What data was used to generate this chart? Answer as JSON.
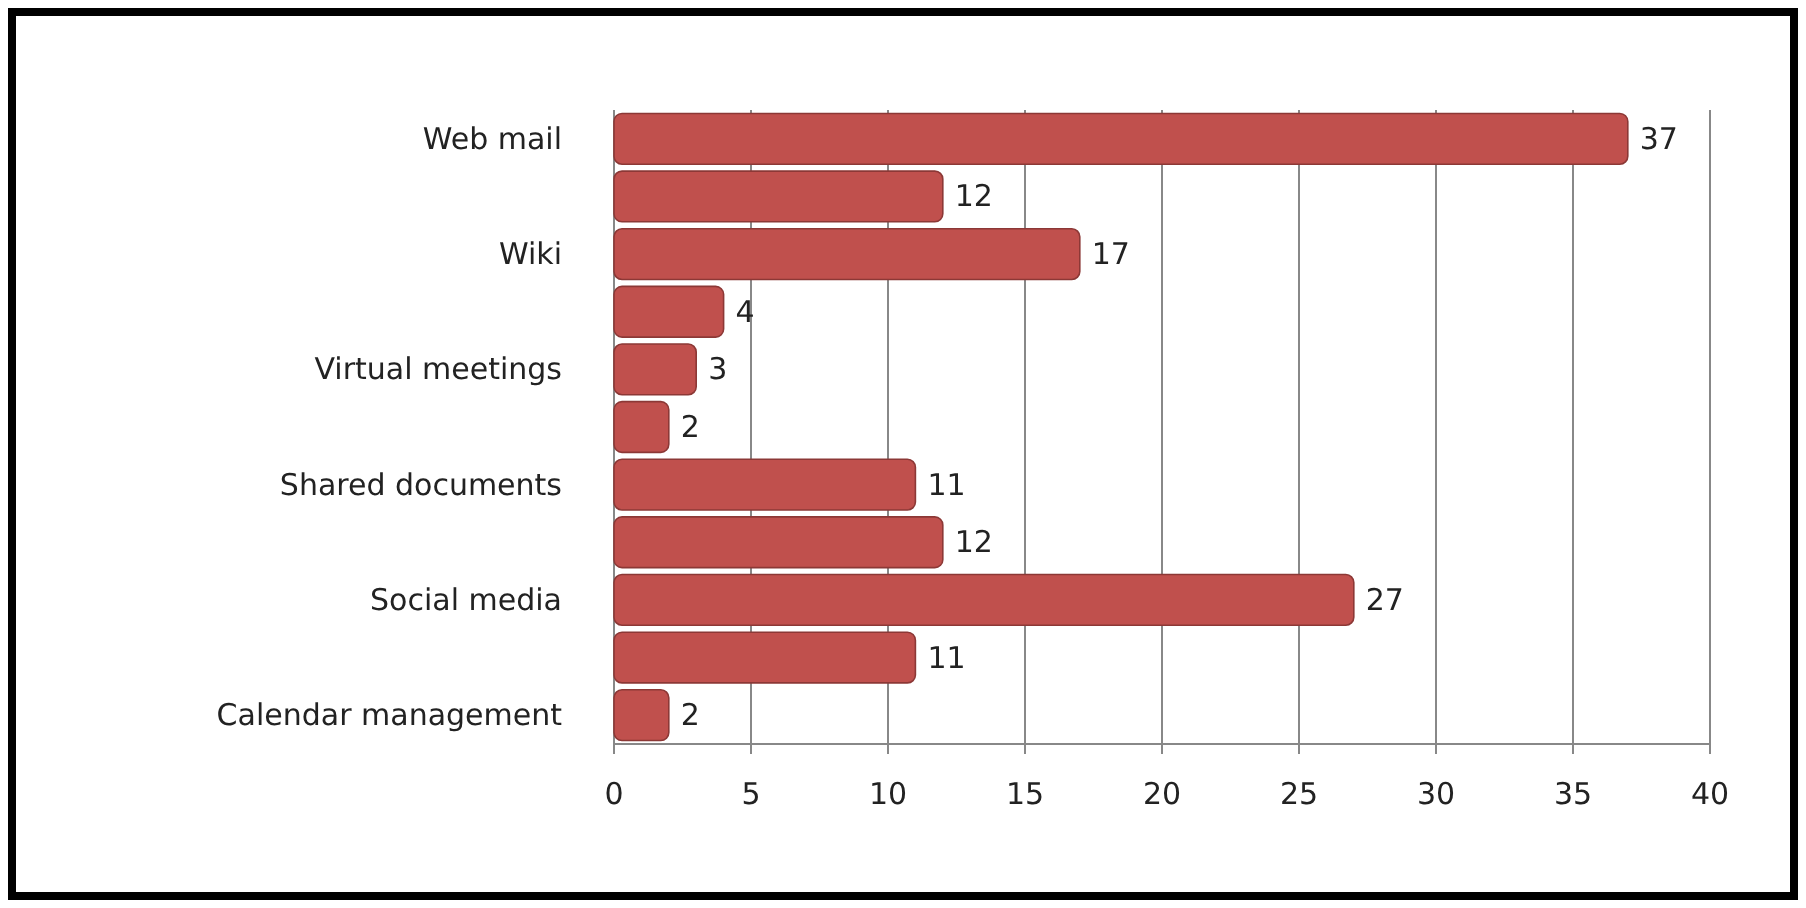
{
  "chart_data": {
    "type": "bar",
    "orientation": "horizontal",
    "categories": [
      "Web mail",
      null,
      "Wiki",
      null,
      "Virtual meetings",
      null,
      "Shared documents",
      null,
      "Social media",
      null,
      "Calendar management"
    ],
    "values": [
      37,
      12,
      17,
      4,
      3,
      2,
      11,
      12,
      27,
      11,
      2
    ],
    "color": "#c0504d",
    "xlim": [
      0,
      40
    ],
    "xticks": [
      0,
      5,
      10,
      15,
      20,
      25,
      30,
      35,
      40
    ],
    "grid": "x",
    "data_labels": true
  }
}
